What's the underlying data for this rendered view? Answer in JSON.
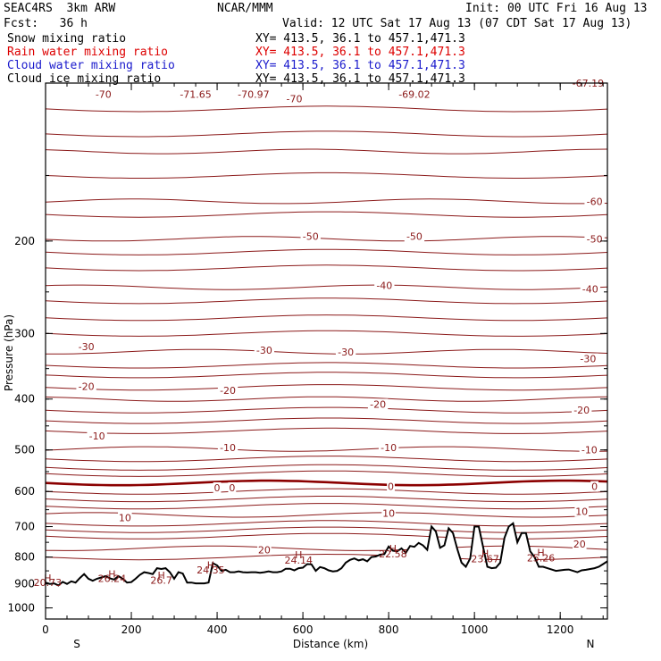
{
  "header": {
    "model": "SEAC4RS  3km ARW",
    "center": "NCAR/MMM",
    "init": "Init: 00 UTC Fri 16 Aug 13",
    "fcst": "Fcst:   36 h",
    "valid": "Valid: 12 UTC Sat 17 Aug 13 (07 CDT Sat 17 Aug 13)"
  },
  "fields": [
    {
      "label": "Snow mixing ratio",
      "xy": "XY= 413.5, 36.1 to 457.1,471.3",
      "color": "#000000"
    },
    {
      "label": "Rain water mixing ratio",
      "xy": "XY= 413.5, 36.1 to 457.1,471.3",
      "color": "#dd0000"
    },
    {
      "label": "Cloud water mixing ratio",
      "xy": "XY= 413.5, 36.1 to 457.1,471.3",
      "color": "#1a1acc"
    },
    {
      "label": "Cloud ice mixing ratio",
      "xy": "XY= 413.5, 36.1 to 457.1,471.3",
      "color": "#000000"
    }
  ],
  "colors": {
    "contour": "#8b1a1a",
    "zero_contour": "#8b0000",
    "terrain": "#000000"
  },
  "chart_data": {
    "type": "line",
    "xlabel": "Distance (km)",
    "ylabel": "Pressure (hPa)",
    "xlim": [
      0,
      1310
    ],
    "ylim": [
      100,
      1050
    ],
    "y_scale": "log-pressure",
    "x_ticks": [
      "0",
      "200",
      "400",
      "600",
      "800",
      "1000",
      "1200"
    ],
    "y_ticks": [
      "200",
      "300",
      "400",
      "500",
      "600",
      "700",
      "800",
      "900",
      "1000"
    ],
    "end_labels": {
      "left": "S",
      "right": "N"
    },
    "isotherm_levels": [
      -70,
      -60,
      -50,
      -40,
      -30,
      -20,
      -10,
      0,
      10,
      20
    ],
    "isotherm_labels": [
      {
        "x": 135,
        "p": 105,
        "text": "-70"
      },
      {
        "x": 350,
        "p": 105,
        "text": "-71.65"
      },
      {
        "x": 485,
        "p": 105,
        "text": "-70.97"
      },
      {
        "x": 580,
        "p": 107,
        "text": "-70"
      },
      {
        "x": 860,
        "p": 105,
        "text": "-69.02"
      },
      {
        "x": 1265,
        "p": 100,
        "text": "-67.19"
      },
      {
        "x": 1280,
        "p": 168,
        "text": "-60"
      },
      {
        "x": 618,
        "p": 196,
        "text": "-50"
      },
      {
        "x": 860,
        "p": 196,
        "text": "-50"
      },
      {
        "x": 1280,
        "p": 198,
        "text": "-50"
      },
      {
        "x": 790,
        "p": 243,
        "text": "-40"
      },
      {
        "x": 1270,
        "p": 247,
        "text": "-40"
      },
      {
        "x": 95,
        "p": 318,
        "text": "-30"
      },
      {
        "x": 510,
        "p": 323,
        "text": "-30"
      },
      {
        "x": 700,
        "p": 325,
        "text": "-30"
      },
      {
        "x": 1265,
        "p": 335,
        "text": "-30"
      },
      {
        "x": 95,
        "p": 378,
        "text": "-20"
      },
      {
        "x": 425,
        "p": 385,
        "text": "-20"
      },
      {
        "x": 775,
        "p": 409,
        "text": "-20"
      },
      {
        "x": 1250,
        "p": 420,
        "text": "-20"
      },
      {
        "x": 120,
        "p": 470,
        "text": "-10"
      },
      {
        "x": 425,
        "p": 495,
        "text": "-10"
      },
      {
        "x": 800,
        "p": 495,
        "text": "-10"
      },
      {
        "x": 1268,
        "p": 500,
        "text": "-10"
      },
      {
        "x": 400,
        "p": 590,
        "text": "0"
      },
      {
        "x": 435,
        "p": 590,
        "text": "0"
      },
      {
        "x": 805,
        "p": 587,
        "text": "0"
      },
      {
        "x": 1280,
        "p": 587,
        "text": "0"
      },
      {
        "x": 185,
        "p": 673,
        "text": "10"
      },
      {
        "x": 800,
        "p": 660,
        "text": "10"
      },
      {
        "x": 1250,
        "p": 655,
        "text": "10"
      },
      {
        "x": 510,
        "p": 775,
        "text": "20"
      },
      {
        "x": 1245,
        "p": 755,
        "text": "20"
      }
    ],
    "terrain_labels": [
      {
        "x": 5,
        "p": 877,
        "text": "H"
      },
      {
        "x": 5,
        "p": 895,
        "text": "20.73"
      },
      {
        "x": 155,
        "p": 862,
        "text": "H"
      },
      {
        "x": 155,
        "p": 879,
        "text": "26.24"
      },
      {
        "x": 270,
        "p": 866,
        "text": "H"
      },
      {
        "x": 270,
        "p": 885,
        "text": "26.7"
      },
      {
        "x": 385,
        "p": 828,
        "text": "H"
      },
      {
        "x": 385,
        "p": 846,
        "text": "24.35"
      },
      {
        "x": 590,
        "p": 792,
        "text": "H"
      },
      {
        "x": 590,
        "p": 810,
        "text": "24.14"
      },
      {
        "x": 810,
        "p": 770,
        "text": "H"
      },
      {
        "x": 810,
        "p": 788,
        "text": "22.58"
      },
      {
        "x": 1025,
        "p": 787,
        "text": "H"
      },
      {
        "x": 1025,
        "p": 806,
        "text": "23.67"
      },
      {
        "x": 1155,
        "p": 784,
        "text": "H"
      },
      {
        "x": 1155,
        "p": 803,
        "text": "25.26"
      }
    ],
    "terrain_profile": {
      "x": [
        0,
        10,
        20,
        30,
        40,
        50,
        60,
        70,
        80,
        90,
        100,
        110,
        120,
        130,
        140,
        150,
        160,
        170,
        180,
        190,
        200,
        210,
        220,
        230,
        240,
        250,
        260,
        270,
        280,
        290,
        300,
        310,
        320,
        330,
        340,
        350,
        360,
        370,
        380,
        390,
        400,
        410,
        420,
        430,
        440,
        450,
        460,
        470,
        480,
        490,
        500,
        510,
        520,
        530,
        540,
        550,
        560,
        570,
        580,
        590,
        600,
        610,
        620,
        630,
        640,
        650,
        660,
        670,
        680,
        690,
        700,
        710,
        720,
        730,
        740,
        750,
        760,
        770,
        780,
        790,
        800,
        810,
        820,
        830,
        840,
        850,
        860,
        870,
        880,
        890,
        900,
        910,
        920,
        930,
        940,
        950,
        960,
        970,
        980,
        990,
        1000,
        1010,
        1020,
        1030,
        1040,
        1050,
        1060,
        1070,
        1080,
        1090,
        1100,
        1110,
        1120,
        1130,
        1140,
        1150,
        1160,
        1170,
        1180,
        1190,
        1200,
        1210,
        1220,
        1230,
        1240,
        1250,
        1260,
        1270,
        1280,
        1290,
        1300,
        1310
      ],
      "p": [
        895,
        900,
        898,
        906,
        892,
        900,
        890,
        895,
        877,
        862,
        880,
        888,
        880,
        875,
        870,
        878,
        883,
        870,
        880,
        895,
        893,
        880,
        865,
        855,
        858,
        862,
        840,
        843,
        840,
        855,
        880,
        855,
        860,
        895,
        895,
        898,
        898,
        898,
        895,
        822,
        830,
        850,
        846,
        855,
        855,
        852,
        855,
        856,
        855,
        855,
        857,
        855,
        852,
        855,
        855,
        852,
        842,
        842,
        848,
        840,
        838,
        825,
        826,
        850,
        836,
        840,
        848,
        852,
        850,
        840,
        820,
        810,
        805,
        812,
        808,
        815,
        800,
        798,
        792,
        790,
        764,
        778,
        780,
        770,
        785,
        762,
        765,
        752,
        760,
        775,
        700,
        715,
        768,
        760,
        705,
        720,
        772,
        820,
        835,
        805,
        700,
        700,
        765,
        835,
        840,
        838,
        820,
        735,
        700,
        690,
        750,
        720,
        720,
        780,
        800,
        835,
        835,
        840,
        845,
        850,
        848,
        846,
        845,
        850,
        855,
        848,
        846,
        843,
        840,
        835,
        825,
        815
      ]
    }
  }
}
